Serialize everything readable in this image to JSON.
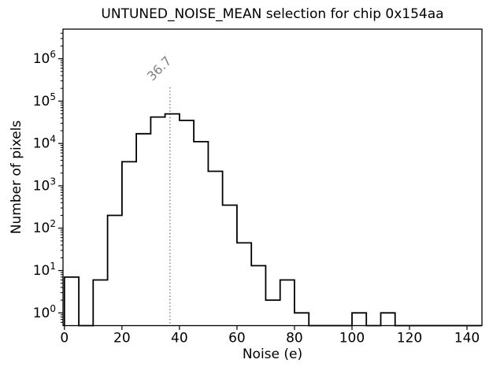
{
  "chart": {
    "title": "UNTUNED_NOISE_MEAN selection for chip 0x154aa",
    "xlabel": "Noise (e)",
    "ylabel": "Number of pixels"
  },
  "chart_data": {
    "type": "bar",
    "subtype": "step-histogram",
    "title": "UNTUNED_NOISE_MEAN selection for chip 0x154aa",
    "xlabel": "Noise (e)",
    "ylabel": "Number of pixels",
    "yscale": "log",
    "grid": false,
    "bin_edges": [
      0,
      5,
      10,
      15,
      20,
      25,
      30,
      35,
      40,
      45,
      50,
      55,
      60,
      65,
      70,
      75,
      80,
      85,
      90,
      95,
      100,
      105,
      110,
      115,
      120,
      125,
      130,
      135,
      140,
      145
    ],
    "counts": [
      7,
      0,
      6,
      200,
      3700,
      17000,
      42000,
      50000,
      35000,
      11000,
      2200,
      350,
      45,
      13,
      2,
      6,
      1,
      0,
      0,
      0,
      1,
      0,
      1,
      0,
      0,
      0,
      0,
      0,
      0
    ],
    "x_ticks": [
      0,
      20,
      40,
      60,
      80,
      100,
      120,
      140
    ],
    "y_tick_exponents": [
      0,
      1,
      2,
      3,
      4,
      5,
      6
    ],
    "xlim": [
      -0.5,
      145.2
    ],
    "ylim": [
      0.5,
      5000000
    ],
    "annotation": {
      "value": 36.7,
      "label": "36.7",
      "style": "dotted-vline",
      "color": "#7f7f7f"
    },
    "line_color": "#000000",
    "axis_color": "#000000",
    "background": "#ffffff"
  }
}
